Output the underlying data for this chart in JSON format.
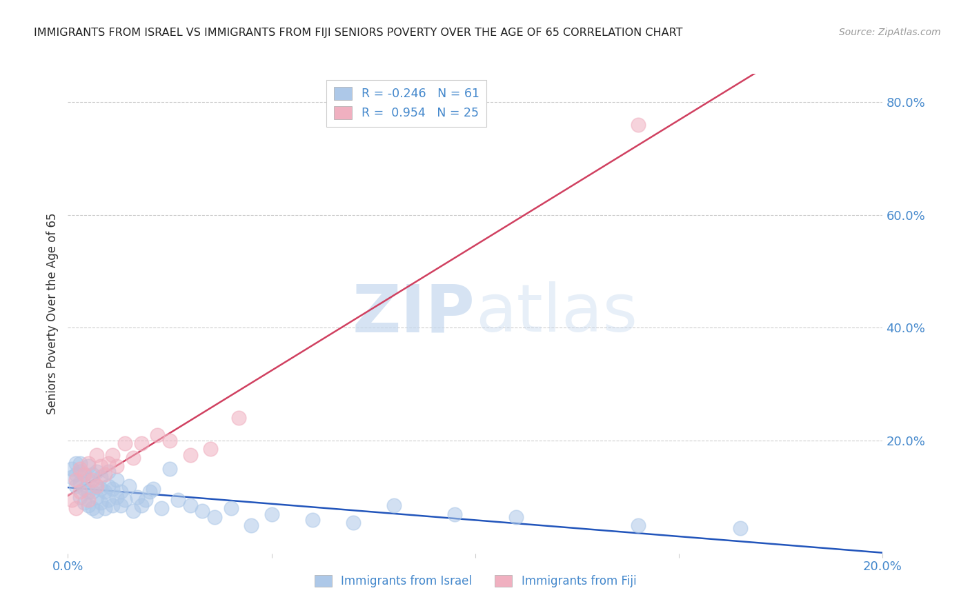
{
  "title": "IMMIGRANTS FROM ISRAEL VS IMMIGRANTS FROM FIJI SENIORS POVERTY OVER THE AGE OF 65 CORRELATION CHART",
  "source": "Source: ZipAtlas.com",
  "ylabel": "Seniors Poverty Over the Age of 65",
  "watermark_zip": "ZIP",
  "watermark_atlas": "atlas",
  "legend_israel": {
    "R": -0.246,
    "N": 61,
    "color": "#adc8e8"
  },
  "legend_fiji": {
    "R": 0.954,
    "N": 25,
    "color": "#f0b0c0"
  },
  "israel_line_color": "#2255bb",
  "fiji_line_color": "#d04060",
  "xlim": [
    0.0,
    0.2
  ],
  "ylim": [
    0.0,
    0.85
  ],
  "x_ticks": [
    0.0,
    0.05,
    0.1,
    0.15,
    0.2
  ],
  "x_tick_labels": [
    "0.0%",
    "",
    "",
    "",
    "20.0%"
  ],
  "y_ticks_right": [
    0.2,
    0.4,
    0.6,
    0.8
  ],
  "y_tick_labels_right": [
    "20.0%",
    "40.0%",
    "60.0%",
    "80.0%"
  ],
  "israel_scatter_x": [
    0.001,
    0.001,
    0.002,
    0.002,
    0.002,
    0.003,
    0.003,
    0.003,
    0.003,
    0.004,
    0.004,
    0.004,
    0.005,
    0.005,
    0.005,
    0.005,
    0.006,
    0.006,
    0.006,
    0.007,
    0.007,
    0.007,
    0.007,
    0.008,
    0.008,
    0.008,
    0.009,
    0.009,
    0.01,
    0.01,
    0.01,
    0.011,
    0.011,
    0.012,
    0.012,
    0.013,
    0.013,
    0.014,
    0.015,
    0.016,
    0.017,
    0.018,
    0.019,
    0.02,
    0.021,
    0.023,
    0.025,
    0.027,
    0.03,
    0.033,
    0.036,
    0.04,
    0.045,
    0.05,
    0.06,
    0.07,
    0.08,
    0.095,
    0.11,
    0.14,
    0.165
  ],
  "israel_scatter_y": [
    0.135,
    0.15,
    0.12,
    0.14,
    0.16,
    0.1,
    0.125,
    0.145,
    0.16,
    0.09,
    0.115,
    0.14,
    0.085,
    0.11,
    0.13,
    0.155,
    0.08,
    0.11,
    0.14,
    0.075,
    0.1,
    0.12,
    0.145,
    0.09,
    0.115,
    0.135,
    0.08,
    0.11,
    0.095,
    0.12,
    0.145,
    0.085,
    0.115,
    0.1,
    0.13,
    0.085,
    0.11,
    0.095,
    0.12,
    0.075,
    0.1,
    0.085,
    0.095,
    0.11,
    0.115,
    0.08,
    0.15,
    0.095,
    0.085,
    0.075,
    0.065,
    0.08,
    0.05,
    0.07,
    0.06,
    0.055,
    0.085,
    0.07,
    0.065,
    0.05,
    0.045
  ],
  "fiji_scatter_x": [
    0.001,
    0.002,
    0.002,
    0.003,
    0.003,
    0.004,
    0.005,
    0.005,
    0.006,
    0.007,
    0.007,
    0.008,
    0.009,
    0.01,
    0.011,
    0.012,
    0.014,
    0.016,
    0.018,
    0.022,
    0.025,
    0.03,
    0.035,
    0.042,
    0.14
  ],
  "fiji_scatter_y": [
    0.095,
    0.08,
    0.13,
    0.11,
    0.15,
    0.14,
    0.095,
    0.16,
    0.13,
    0.12,
    0.175,
    0.155,
    0.14,
    0.16,
    0.175,
    0.155,
    0.195,
    0.17,
    0.195,
    0.21,
    0.2,
    0.175,
    0.185,
    0.24,
    0.76
  ],
  "background_color": "#ffffff",
  "grid_color": "#cccccc",
  "tick_color": "#4488cc",
  "title_color": "#222222",
  "title_fontsize": 11.5,
  "axis_label_color": "#333333",
  "scatter_size": 220,
  "scatter_alpha": 0.55
}
